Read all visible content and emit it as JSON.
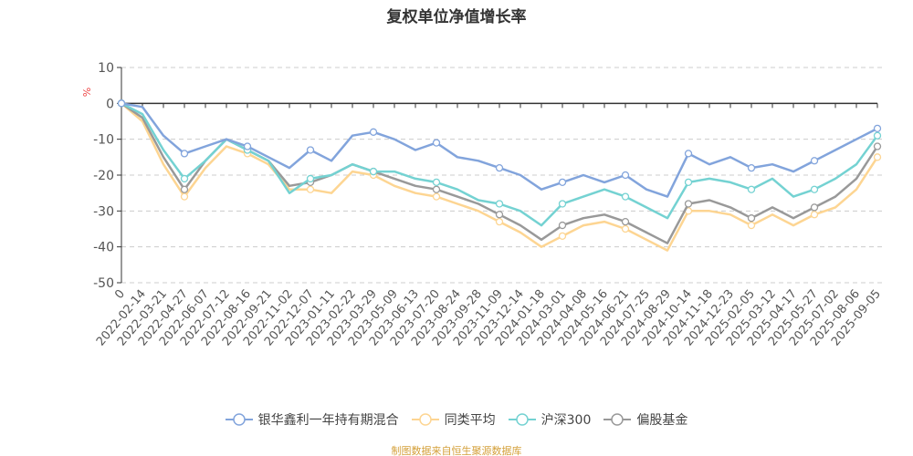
{
  "chart_data": {
    "type": "line",
    "title": "复权单位净值增长率",
    "ylabel": "%",
    "ylim": [
      -50,
      10
    ],
    "yticks": [
      10,
      0,
      -10,
      -20,
      -30,
      -40,
      -50
    ],
    "grid": true,
    "legend_position": "bottom",
    "x": [
      "0",
      "2022-02-14",
      "2022-03-21",
      "2022-04-27",
      "2022-06-07",
      "2022-07-12",
      "2022-08-16",
      "2022-09-21",
      "2022-11-02",
      "2022-12-07",
      "2023-01-11",
      "2023-02-22",
      "2023-03-29",
      "2023-05-09",
      "2023-06-13",
      "2023-07-20",
      "2023-08-24",
      "2023-09-28",
      "2023-11-09",
      "2023-12-14",
      "2024-01-18",
      "2024-03-01",
      "2024-04-08",
      "2024-05-16",
      "2024-06-21",
      "2024-07-25",
      "2024-08-29",
      "2024-10-14",
      "2024-11-18",
      "2024-12-23",
      "2025-02-05",
      "2025-03-12",
      "2025-04-17",
      "2025-05-27",
      "2025-07-02",
      "2025-08-06",
      "2025-09-05"
    ],
    "series": [
      {
        "name": "银华鑫利一年持有期混合",
        "color": "#82a4dc",
        "values": [
          0,
          -1,
          -9,
          -14,
          -12,
          -10,
          -12,
          -15,
          -18,
          -13,
          -16,
          -9,
          -8,
          -10,
          -13,
          -11,
          -15,
          -16,
          -18,
          -20,
          -24,
          -22,
          -20,
          -22,
          -20,
          -24,
          -26,
          -14,
          -17,
          -15,
          -18,
          -17,
          -19,
          -16,
          -13,
          -10,
          -7
        ]
      },
      {
        "name": "同类平均",
        "color": "#fdd592",
        "values": [
          0,
          -5,
          -17,
          -26,
          -18,
          -12,
          -14,
          -17,
          -24,
          -24,
          -25,
          -19,
          -20,
          -23,
          -25,
          -26,
          -28,
          -30,
          -33,
          -36,
          -40,
          -37,
          -34,
          -33,
          -35,
          -38,
          -41,
          -30,
          -30,
          -31,
          -34,
          -31,
          -34,
          -31,
          -29,
          -24,
          -15
        ]
      },
      {
        "name": "沪深300",
        "color": "#74d2d2",
        "values": [
          0,
          -3,
          -13,
          -21,
          -16,
          -10,
          -13,
          -16,
          -25,
          -21,
          -20,
          -17,
          -19,
          -19,
          -21,
          -22,
          -24,
          -27,
          -28,
          -30,
          -34,
          -28,
          -26,
          -24,
          -26,
          -29,
          -32,
          -22,
          -21,
          -22,
          -24,
          -21,
          -26,
          -24,
          -21,
          -17,
          -9
        ]
      },
      {
        "name": "偏股基金",
        "color": "#999999",
        "values": [
          0,
          -4,
          -15,
          -24,
          -16,
          -10,
          -13,
          -16,
          -23,
          -22,
          -20,
          -17,
          -19,
          -21,
          -23,
          -24,
          -26,
          -28,
          -31,
          -34,
          -38,
          -34,
          -32,
          -31,
          -33,
          -36,
          -39,
          -28,
          -27,
          -29,
          -32,
          -29,
          -32,
          -29,
          -26,
          -21,
          -12
        ]
      }
    ]
  },
  "footer": "制图数据来自恒生聚源数据库"
}
